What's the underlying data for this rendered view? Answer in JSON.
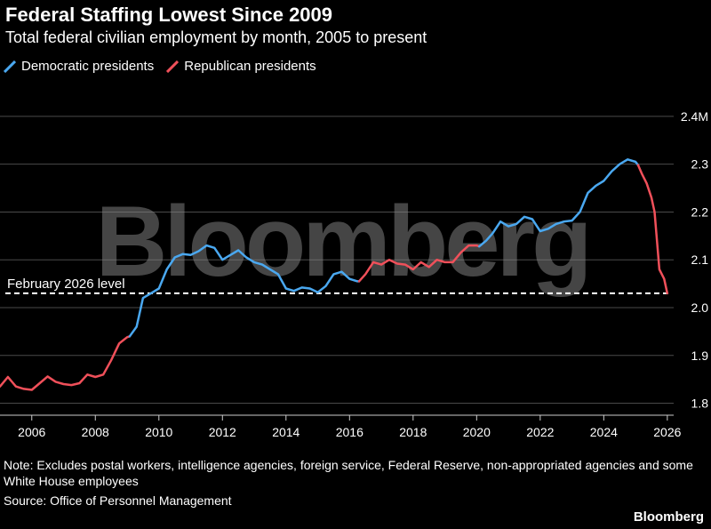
{
  "header": {
    "title": "Federal Staffing Lowest Since 2009",
    "subtitle": "Total federal civilian employment by month, 2005 to present"
  },
  "legend": {
    "dem_label": "Democratic presidents",
    "rep_label": "Republican presidents"
  },
  "colors": {
    "democratic": "#4aa8f0",
    "republican": "#f0505a",
    "grid": "#4a4a4a",
    "background": "#000000"
  },
  "footer": {
    "note": "Note: Excludes postal workers, intelligence agencies, foreign service, Federal Reserve, non-appropriated agencies and some White House employees",
    "source": "Source: Office of Personnel Management",
    "brand": "Bloomberg"
  },
  "watermark": "Bloomberg",
  "chart_data": {
    "type": "line",
    "title": "Federal Staffing Lowest Since 2009",
    "xlabel": "",
    "ylabel": "",
    "xlim": [
      2005,
      2026.2
    ],
    "ylim": [
      1.775,
      2.45
    ],
    "x_ticks": [
      2006,
      2008,
      2010,
      2012,
      2014,
      2016,
      2018,
      2020,
      2022,
      2024,
      2026
    ],
    "y_ticks": [
      1.8,
      1.9,
      2.0,
      2.1,
      2.2,
      2.3,
      2.4
    ],
    "y_tick_labels": [
      "1.8",
      "1.9",
      "2.0",
      "2.1",
      "2.2",
      "2.3",
      "2.4M"
    ],
    "grid": true,
    "reference_line": {
      "value": 2.03,
      "label": "February 2026 level"
    },
    "series": [
      {
        "name": "Republican presidents",
        "party": "republican",
        "points": [
          [
            2005.0,
            1.835
          ],
          [
            2005.25,
            1.855
          ],
          [
            2005.5,
            1.835
          ],
          [
            2005.75,
            1.83
          ],
          [
            2006.0,
            1.828
          ],
          [
            2006.25,
            1.842
          ],
          [
            2006.5,
            1.856
          ],
          [
            2006.75,
            1.845
          ],
          [
            2007.0,
            1.84
          ],
          [
            2007.25,
            1.838
          ],
          [
            2007.5,
            1.842
          ],
          [
            2007.75,
            1.86
          ],
          [
            2008.0,
            1.855
          ],
          [
            2008.25,
            1.86
          ],
          [
            2008.5,
            1.89
          ],
          [
            2008.75,
            1.925
          ],
          [
            2009.0,
            1.938
          ],
          [
            2009.08,
            1.94
          ]
        ]
      },
      {
        "name": "Democratic presidents",
        "party": "democratic",
        "points": [
          [
            2009.08,
            1.94
          ],
          [
            2009.3,
            1.96
          ],
          [
            2009.5,
            2.02
          ],
          [
            2009.75,
            2.03
          ],
          [
            2010.0,
            2.04
          ],
          [
            2010.25,
            2.08
          ],
          [
            2010.5,
            2.105
          ],
          [
            2010.75,
            2.112
          ],
          [
            2011.0,
            2.11
          ],
          [
            2011.25,
            2.118
          ],
          [
            2011.5,
            2.13
          ],
          [
            2011.75,
            2.125
          ],
          [
            2012.0,
            2.1
          ],
          [
            2012.25,
            2.11
          ],
          [
            2012.5,
            2.12
          ],
          [
            2012.75,
            2.105
          ],
          [
            2013.0,
            2.095
          ],
          [
            2013.25,
            2.09
          ],
          [
            2013.5,
            2.08
          ],
          [
            2013.75,
            2.07
          ],
          [
            2014.0,
            2.04
          ],
          [
            2014.25,
            2.035
          ],
          [
            2014.5,
            2.042
          ],
          [
            2014.75,
            2.04
          ],
          [
            2015.0,
            2.032
          ],
          [
            2015.25,
            2.045
          ],
          [
            2015.5,
            2.07
          ],
          [
            2015.75,
            2.075
          ],
          [
            2016.0,
            2.06
          ],
          [
            2016.25,
            2.055
          ],
          [
            2016.3,
            2.055
          ]
        ]
      },
      {
        "name": "Republican presidents",
        "party": "republican",
        "points": [
          [
            2016.3,
            2.055
          ],
          [
            2016.5,
            2.07
          ],
          [
            2016.75,
            2.095
          ],
          [
            2017.0,
            2.09
          ],
          [
            2017.25,
            2.1
          ],
          [
            2017.5,
            2.092
          ],
          [
            2017.75,
            2.09
          ],
          [
            2018.0,
            2.08
          ],
          [
            2018.25,
            2.095
          ],
          [
            2018.5,
            2.085
          ],
          [
            2018.75,
            2.1
          ],
          [
            2019.0,
            2.095
          ],
          [
            2019.25,
            2.095
          ],
          [
            2019.5,
            2.115
          ],
          [
            2019.75,
            2.13
          ],
          [
            2020.0,
            2.13
          ],
          [
            2020.08,
            2.128
          ]
        ]
      },
      {
        "name": "Democratic presidents",
        "party": "democratic",
        "points": [
          [
            2020.08,
            2.128
          ],
          [
            2020.3,
            2.14
          ],
          [
            2020.5,
            2.155
          ],
          [
            2020.75,
            2.18
          ],
          [
            2021.0,
            2.17
          ],
          [
            2021.25,
            2.175
          ],
          [
            2021.5,
            2.19
          ],
          [
            2021.75,
            2.185
          ],
          [
            2022.0,
            2.16
          ],
          [
            2022.25,
            2.165
          ],
          [
            2022.5,
            2.175
          ],
          [
            2022.75,
            2.18
          ],
          [
            2023.0,
            2.182
          ],
          [
            2023.25,
            2.2
          ],
          [
            2023.5,
            2.24
          ],
          [
            2023.75,
            2.255
          ],
          [
            2024.0,
            2.265
          ],
          [
            2024.25,
            2.285
          ],
          [
            2024.5,
            2.3
          ],
          [
            2024.75,
            2.31
          ],
          [
            2025.0,
            2.305
          ],
          [
            2025.08,
            2.298
          ]
        ]
      },
      {
        "name": "Republican presidents",
        "party": "republican",
        "points": [
          [
            2025.08,
            2.298
          ],
          [
            2025.2,
            2.28
          ],
          [
            2025.35,
            2.26
          ],
          [
            2025.5,
            2.23
          ],
          [
            2025.6,
            2.2
          ],
          [
            2025.75,
            2.08
          ],
          [
            2025.9,
            2.06
          ],
          [
            2026.0,
            2.03
          ]
        ]
      }
    ]
  }
}
